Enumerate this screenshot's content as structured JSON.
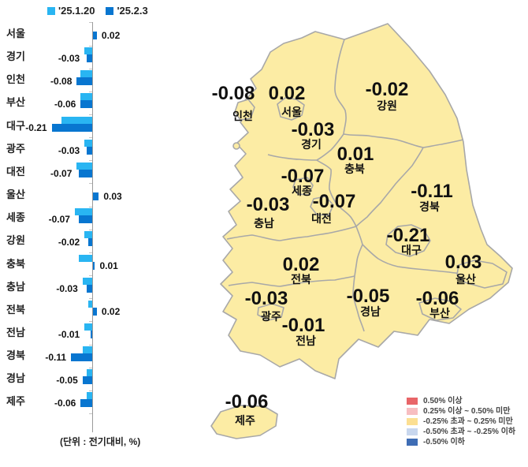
{
  "bar_chart": {
    "legend": [
      {
        "label": "'25.1.20",
        "color": "#29B5F2"
      },
      {
        "label": "'25.2.3",
        "color": "#0876D0"
      }
    ],
    "unit_note": "(단위 : 전기대비, %)",
    "regions": [
      "서울",
      "경기",
      "인천",
      "부산",
      "대구",
      "광주",
      "대전",
      "울산",
      "세종",
      "강원",
      "충북",
      "충남",
      "전북",
      "전남",
      "경북",
      "경남",
      "제주"
    ]
  },
  "chart_data": {
    "type": "bar",
    "orientation": "horizontal",
    "categories": [
      "서울",
      "경기",
      "인천",
      "부산",
      "대구",
      "광주",
      "대전",
      "울산",
      "세종",
      "강원",
      "충북",
      "충남",
      "전북",
      "전남",
      "경북",
      "경남",
      "제주"
    ],
    "series": [
      {
        "name": "'25.1.20",
        "color": "#29B5F2",
        "values": [
          0.0,
          -0.04,
          -0.06,
          -0.06,
          -0.16,
          -0.04,
          -0.08,
          0.0,
          -0.09,
          -0.04,
          -0.07,
          -0.05,
          -0.02,
          -0.04,
          -0.05,
          -0.03,
          -0.03
        ]
      },
      {
        "name": "'25.2.3",
        "color": "#0876D0",
        "values": [
          0.02,
          -0.03,
          -0.08,
          -0.06,
          -0.21,
          -0.03,
          -0.07,
          0.03,
          -0.07,
          -0.02,
          0.01,
          -0.03,
          0.02,
          -0.01,
          -0.11,
          -0.05,
          -0.06
        ]
      }
    ],
    "value_labels_on": "'25.2.3",
    "xlabel": "",
    "ylabel": "",
    "unit": "(단위 : 전기대비, %)",
    "xlim": [
      -0.25,
      0.1
    ],
    "grid": false,
    "legend_position": "top"
  },
  "map": {
    "fill_color": "#FCECA4",
    "border_color": "#A8A8A8",
    "labels": [
      {
        "region": "인천",
        "value": "-0.08"
      },
      {
        "region": "서울",
        "value": "0.02"
      },
      {
        "region": "경기",
        "value": "-0.03"
      },
      {
        "region": "강원",
        "value": "-0.02"
      },
      {
        "region": "충북",
        "value": "0.01"
      },
      {
        "region": "세종",
        "value": "-0.07"
      },
      {
        "region": "대전",
        "value": "-0.07"
      },
      {
        "region": "충남",
        "value": "-0.03"
      },
      {
        "region": "경북",
        "value": "-0.11"
      },
      {
        "region": "대구",
        "value": "-0.21"
      },
      {
        "region": "울산",
        "value": "0.03"
      },
      {
        "region": "전북",
        "value": "0.02"
      },
      {
        "region": "경남",
        "value": "-0.05"
      },
      {
        "region": "부산",
        "value": "-0.06"
      },
      {
        "region": "광주",
        "value": "-0.03"
      },
      {
        "region": "전남",
        "value": "-0.01"
      },
      {
        "region": "제주",
        "value": "-0.06"
      }
    ],
    "legend": [
      {
        "label": "0.50% 이상",
        "color": "#E86568"
      },
      {
        "label": "0.25% 이상 ~ 0.50% 미만",
        "color": "#F7BEC1"
      },
      {
        "label": "-0.25% 초과 ~ 0.25% 미만",
        "color": "#FCDF92"
      },
      {
        "label": "-0.50% 초과 ~ -0.25% 이하",
        "color": "#C8D7EE"
      },
      {
        "label": "-0.50% 이하",
        "color": "#3E6DB5"
      }
    ]
  }
}
